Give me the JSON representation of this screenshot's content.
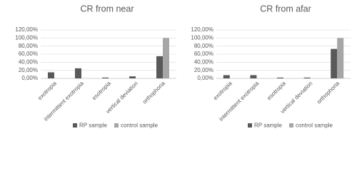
{
  "chart_data": [
    {
      "type": "bar",
      "title": "CR from near",
      "categories": [
        "exotropia",
        "intermittent exotropia",
        "esotropia",
        "vertical deviation",
        "orthophoria"
      ],
      "series": [
        {
          "name": "RP sample",
          "color": "#595959",
          "values": [
            15,
            25,
            2,
            5,
            55
          ]
        },
        {
          "name": "control sample",
          "color": "#a6a6a6",
          "values": [
            0,
            0,
            0,
            0,
            100
          ]
        }
      ],
      "ylim": [
        0,
        120
      ],
      "yticks": [
        {
          "value": 0,
          "label": "0,00%"
        },
        {
          "value": 20,
          "label": "20,00%"
        },
        {
          "value": 40,
          "label": "40,00%"
        },
        {
          "value": 60,
          "label": "60,00%"
        },
        {
          "value": 80,
          "label": "80,00%"
        },
        {
          "value": 100,
          "label": "100,00%"
        },
        {
          "value": 120,
          "label": "120,00%"
        }
      ],
      "grid": true,
      "legend": "bottom"
    },
    {
      "type": "bar",
      "title": "CR from afar",
      "categories": [
        "exotropia",
        "intermittent exotropia",
        "esotropia",
        "vertical deviation",
        "orthophoria"
      ],
      "series": [
        {
          "name": "RP sample",
          "color": "#595959",
          "values": [
            8,
            8,
            2,
            2,
            73
          ]
        },
        {
          "name": "control sample",
          "color": "#a6a6a6",
          "values": [
            0,
            0,
            0,
            0,
            100
          ]
        }
      ],
      "ylim": [
        0,
        120
      ],
      "yticks": [
        {
          "value": 0,
          "label": "0,00%"
        },
        {
          "value": 20,
          "label": "20,00%"
        },
        {
          "value": 40,
          "label": "40,00%"
        },
        {
          "value": 60,
          "label": "60,00%"
        },
        {
          "value": 80,
          "label": "80,00%"
        },
        {
          "value": 100,
          "label": "100,00%"
        },
        {
          "value": 120,
          "label": "120,00%"
        }
      ],
      "grid": true,
      "legend": "bottom"
    }
  ]
}
